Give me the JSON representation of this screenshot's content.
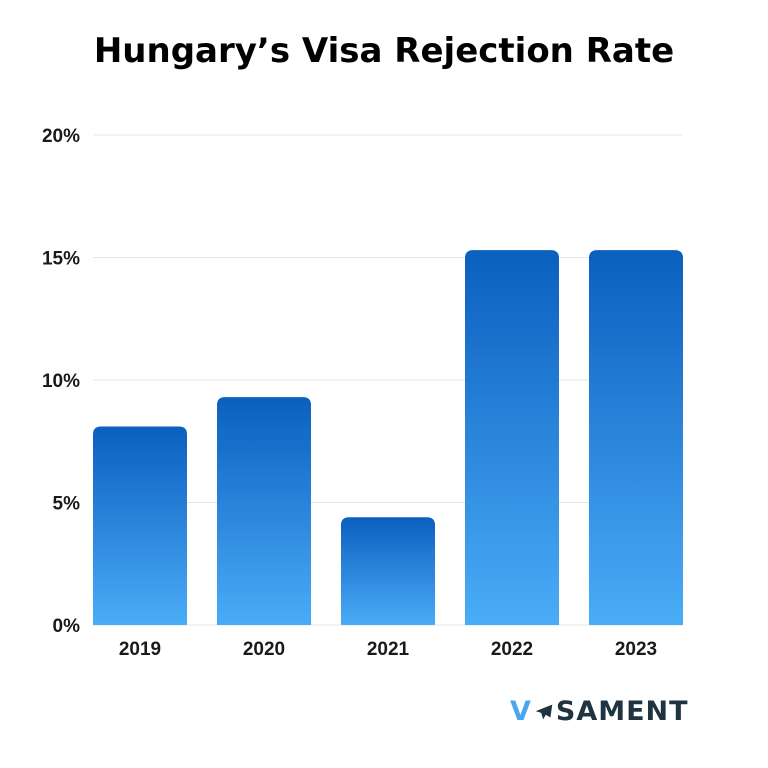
{
  "chart_data": {
    "type": "bar",
    "title": "Hungary’s Visa Rejection Rate",
    "categories": [
      "2019",
      "2020",
      "2021",
      "2022",
      "2023"
    ],
    "values": [
      8.1,
      9.3,
      4.4,
      15.3,
      15.3
    ],
    "ylim": [
      0,
      20
    ],
    "yticks": [
      0,
      5,
      10,
      15,
      20
    ],
    "ytick_labels": [
      "0%",
      "5%",
      "10%",
      "15%",
      "20%"
    ],
    "xlabel": "",
    "ylabel": "",
    "grid": true,
    "colors": {
      "bar_top": "#0b5fbf",
      "bar_bottom": "#4aacf7",
      "grid": "#e6e6e6"
    }
  },
  "logo": {
    "text_v": "V",
    "text_rest": "SAMENT",
    "icon": "plane-icon"
  }
}
